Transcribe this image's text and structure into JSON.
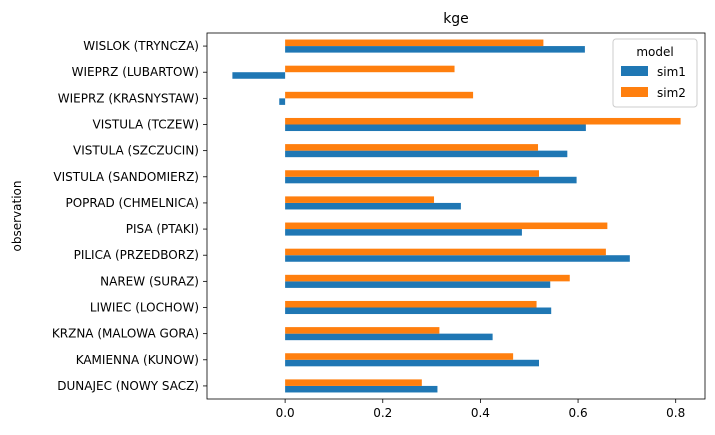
{
  "chart_data": {
    "type": "bar",
    "orientation": "horizontal",
    "title": "kge",
    "xlabel": "",
    "ylabel": "observation",
    "xlim": [
      -0.16,
      0.86
    ],
    "xticks": [
      0.0,
      0.2,
      0.4,
      0.6,
      0.8
    ],
    "xtick_labels": [
      "0.0",
      "0.2",
      "0.4",
      "0.6",
      "0.8"
    ],
    "grid": false,
    "legend": {
      "title": "model",
      "placement": "top-right"
    },
    "categories": [
      "DUNAJEC (NOWY SACZ)",
      "KAMIENNA (KUNOW)",
      "KRZNA (MALOWA GORA)",
      "LIWIEC (LOCHOW)",
      "NAREW (SURAZ)",
      "PILICA (PRZEDBORZ)",
      "PISA (PTAKI)",
      "POPRAD (CHMELNICA)",
      "VISTULA (SANDOMIERZ)",
      "VISTULA (SZCZUCIN)",
      "VISTULA (TCZEW)",
      "WIEPRZ (KRASNYSTAW)",
      "WIEPRZ (LUBARTOW)",
      "WISLOK (TRYNCZA)"
    ],
    "series": [
      {
        "name": "sim1",
        "color": "#1f77b4",
        "values": [
          0.312,
          0.52,
          0.425,
          0.545,
          0.543,
          0.706,
          0.485,
          0.36,
          0.597,
          0.578,
          0.616,
          -0.012,
          -0.108,
          0.614
        ]
      },
      {
        "name": "sim2",
        "color": "#ff7f0e",
        "values": [
          0.28,
          0.467,
          0.316,
          0.515,
          0.583,
          0.657,
          0.66,
          0.305,
          0.52,
          0.518,
          0.81,
          0.385,
          0.347,
          0.529
        ]
      }
    ]
  }
}
